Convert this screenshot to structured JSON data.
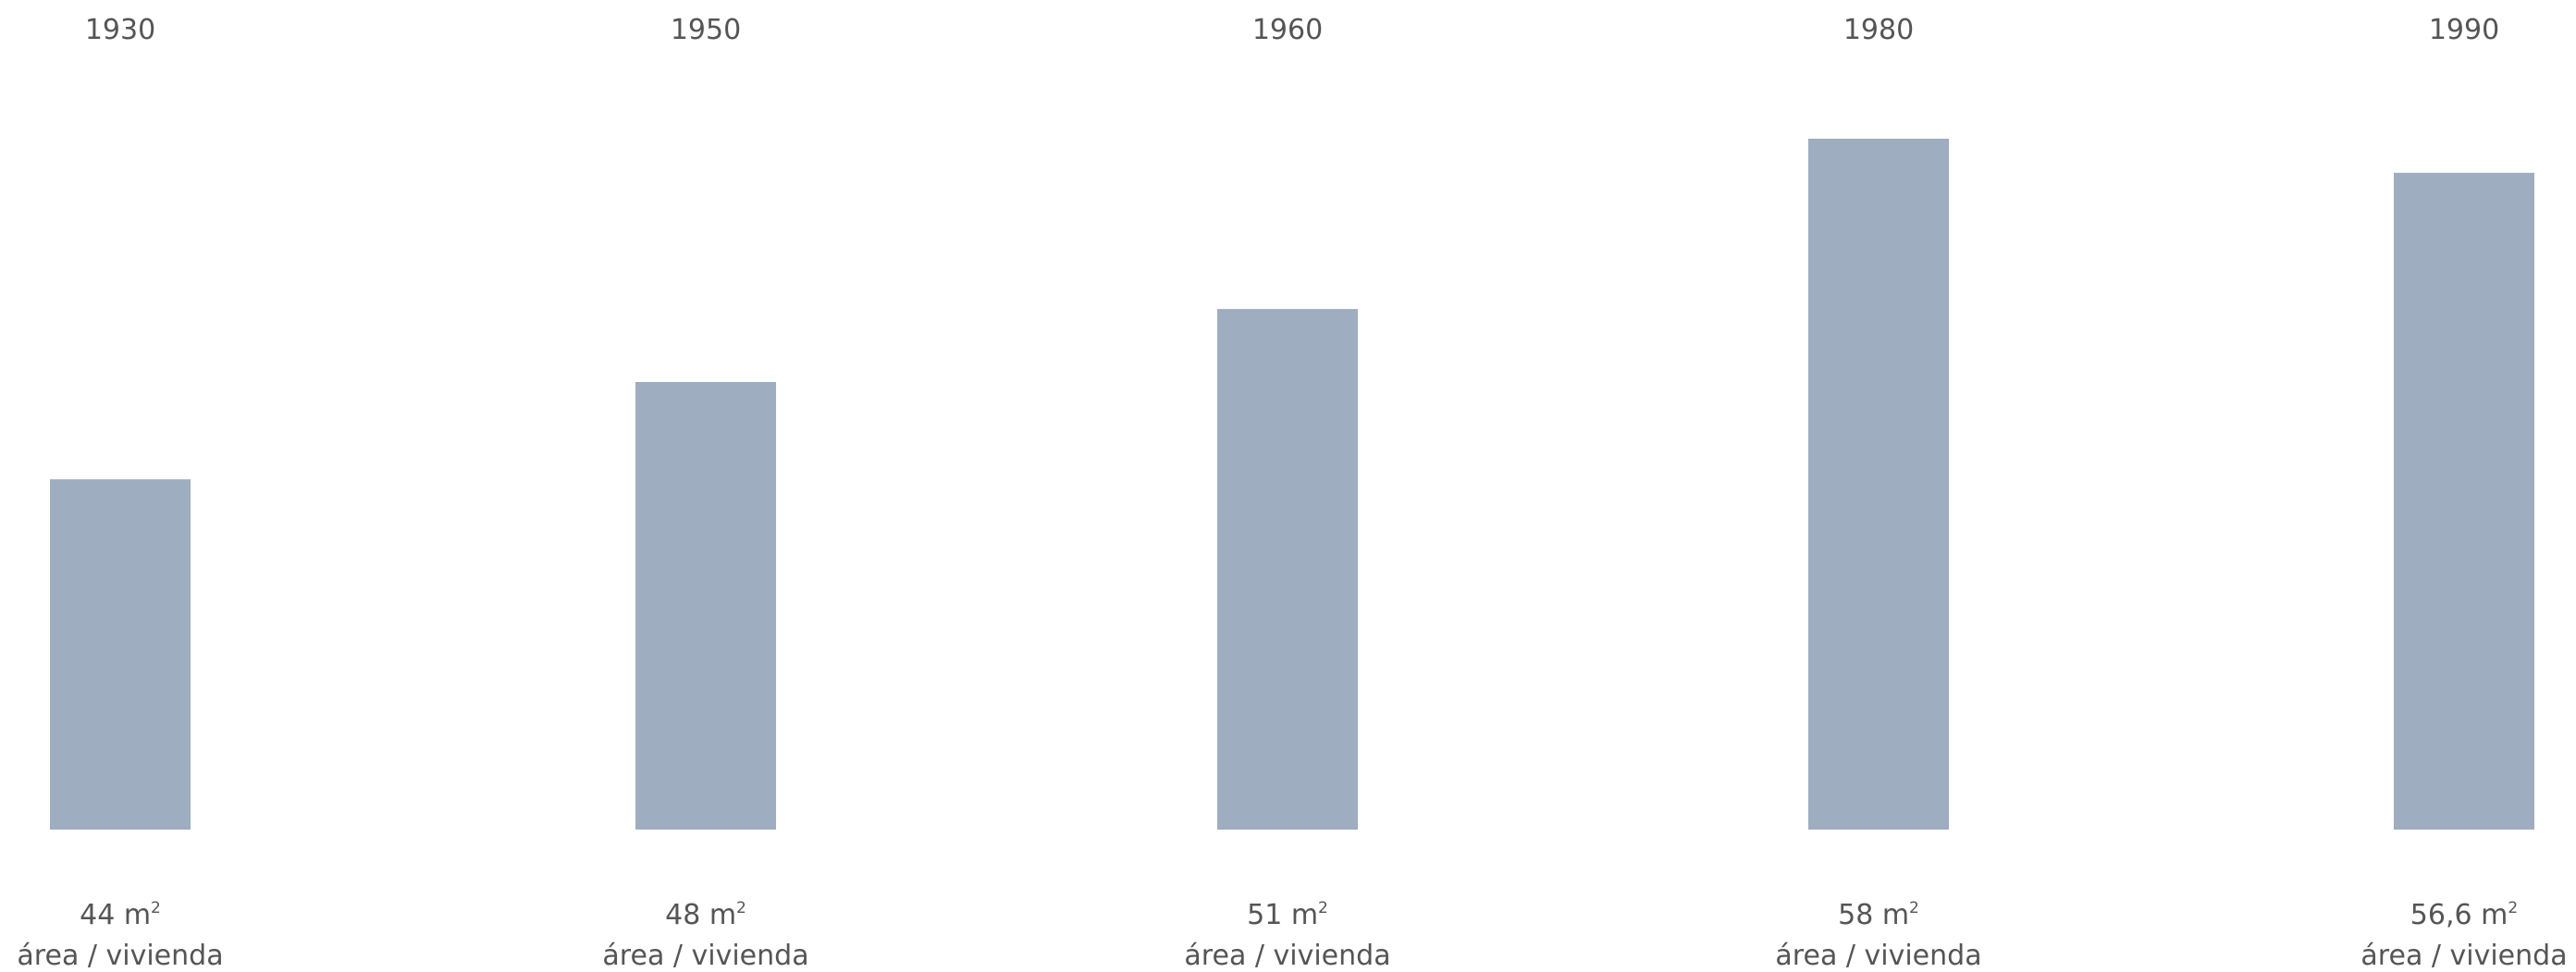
{
  "chart_data": {
    "type": "bar",
    "categories": [
      "1930",
      "1950",
      "1960",
      "1980",
      "1990"
    ],
    "values": [
      44,
      48,
      51,
      58,
      56.6
    ],
    "value_labels": [
      "44 m",
      "48 m",
      "51 m",
      "58 m",
      "56,6 m"
    ],
    "value_superscript": "2",
    "unit_label": "área / vivienda",
    "title": "",
    "xlabel": "",
    "ylabel": "",
    "grid": false,
    "legend": "none",
    "bar_color": "#9eadbf",
    "text_color": "#555555"
  }
}
